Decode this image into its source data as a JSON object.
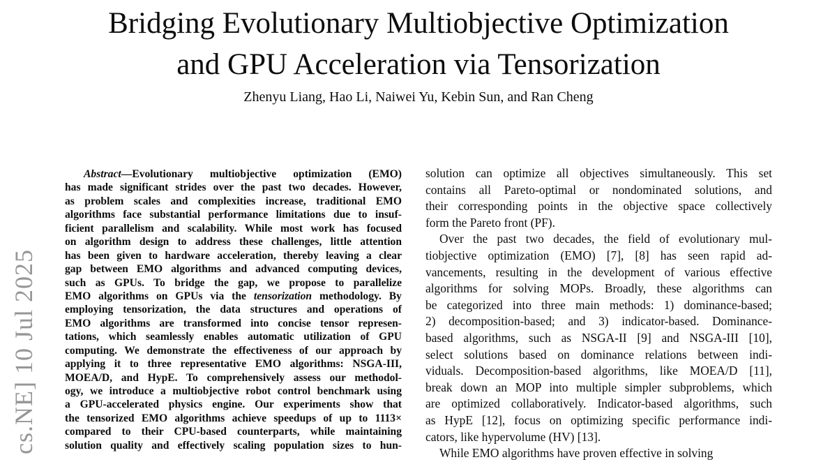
{
  "header": {
    "title_line1": "Bridging Evolutionary Multiobjective Optimization",
    "title_line2": "and GPU Acceleration via Tensorization",
    "authors": "Zhenyu Liang, Hao Li, Naiwei Yu, Kebin Sun, and Ran Cheng"
  },
  "arxiv_watermark": {
    "text": "cs.NE]  10 Jul 2025",
    "color": "#969696"
  },
  "columns": {
    "left": {
      "role": "abstract",
      "lines": [
        {
          "indent": 27,
          "parts": [
            [
              "Abstract",
              "bi"
            ],
            [
              "—Evolutionary multiobjective optimization (EMO)",
              ""
            ]
          ]
        },
        "has made significant strides over the past two decades. However,",
        "as problem scales and complexities increase, traditional EMO",
        "algorithms face substantial performance limitations due to insuf-",
        "ficient parallelism and scalability. While most work has focused",
        "on algorithm design to address these challenges, little attention",
        "has been given to hardware acceleration, thereby leaving a clear",
        "gap between EMO algorithms and advanced computing devices,",
        "such as GPUs. To bridge the gap, we propose to parallelize",
        {
          "parts": [
            [
              "EMO algorithms on GPUs via the ",
              ""
            ],
            [
              "tensorization",
              "bi"
            ],
            [
              " methodology. By",
              ""
            ]
          ]
        },
        "employing tensorization, the data structures and operations of",
        "EMO algorithms are transformed into concise tensor represen-",
        "tations, which seamlessly enables automatic utilization of GPU",
        "computing. We demonstrate the effectiveness of our approach by",
        "applying it to three representative EMO algorithms: NSGA-III,",
        "MOEA/D, and HypE. To comprehensively assess our methodol-",
        "ogy, we introduce a multiobjective robot control benchmark using",
        "a GPU-accelerated physics engine. Our experiments show that",
        "the tensorized EMO algorithms achieve speedups of up to 1113×",
        "compared to their CPU-based counterparts, while maintaining",
        "solution quality and effectively scaling population sizes to hun-"
      ]
    },
    "right": {
      "role": "introduction",
      "lines": [
        "solution can optimize all objectives simultaneously. This set",
        "contains all Pareto-optimal or nondominated solutions, and",
        "their corresponding points in the objective space collectively",
        {
          "t": "form the Pareto front (PF).",
          "justify": false
        },
        {
          "t": "Over the past two decades, the field of evolutionary mul-",
          "indent": 20
        },
        "tiobjective optimization (EMO) [7], [8] has seen rapid ad-",
        "vancements, resulting in the development of various effective",
        "algorithms for solving MOPs. Broadly, these algorithms can",
        "be categorized into three main methods: 1) dominance-based;",
        "2) decomposition-based; and 3) indicator-based. Dominance-",
        "based algorithms, such as NSGA-II [9] and NSGA-III [10],",
        "select solutions based on dominance relations between indi-",
        "viduals. Decomposition-based algorithms, like MOEA/D [11],",
        "break down an MOP into multiple simpler subproblems, which",
        "are optimized collaboratively. Indicator-based algorithms, such",
        "as HypE [12], focus on optimizing specific performance indi-",
        {
          "t": "cators, like hypervolume (HV) [13].",
          "justify": false
        },
        {
          "t": "While EMO algorithms have proven effective in solving",
          "indent": 20,
          "justify": false
        }
      ]
    }
  }
}
